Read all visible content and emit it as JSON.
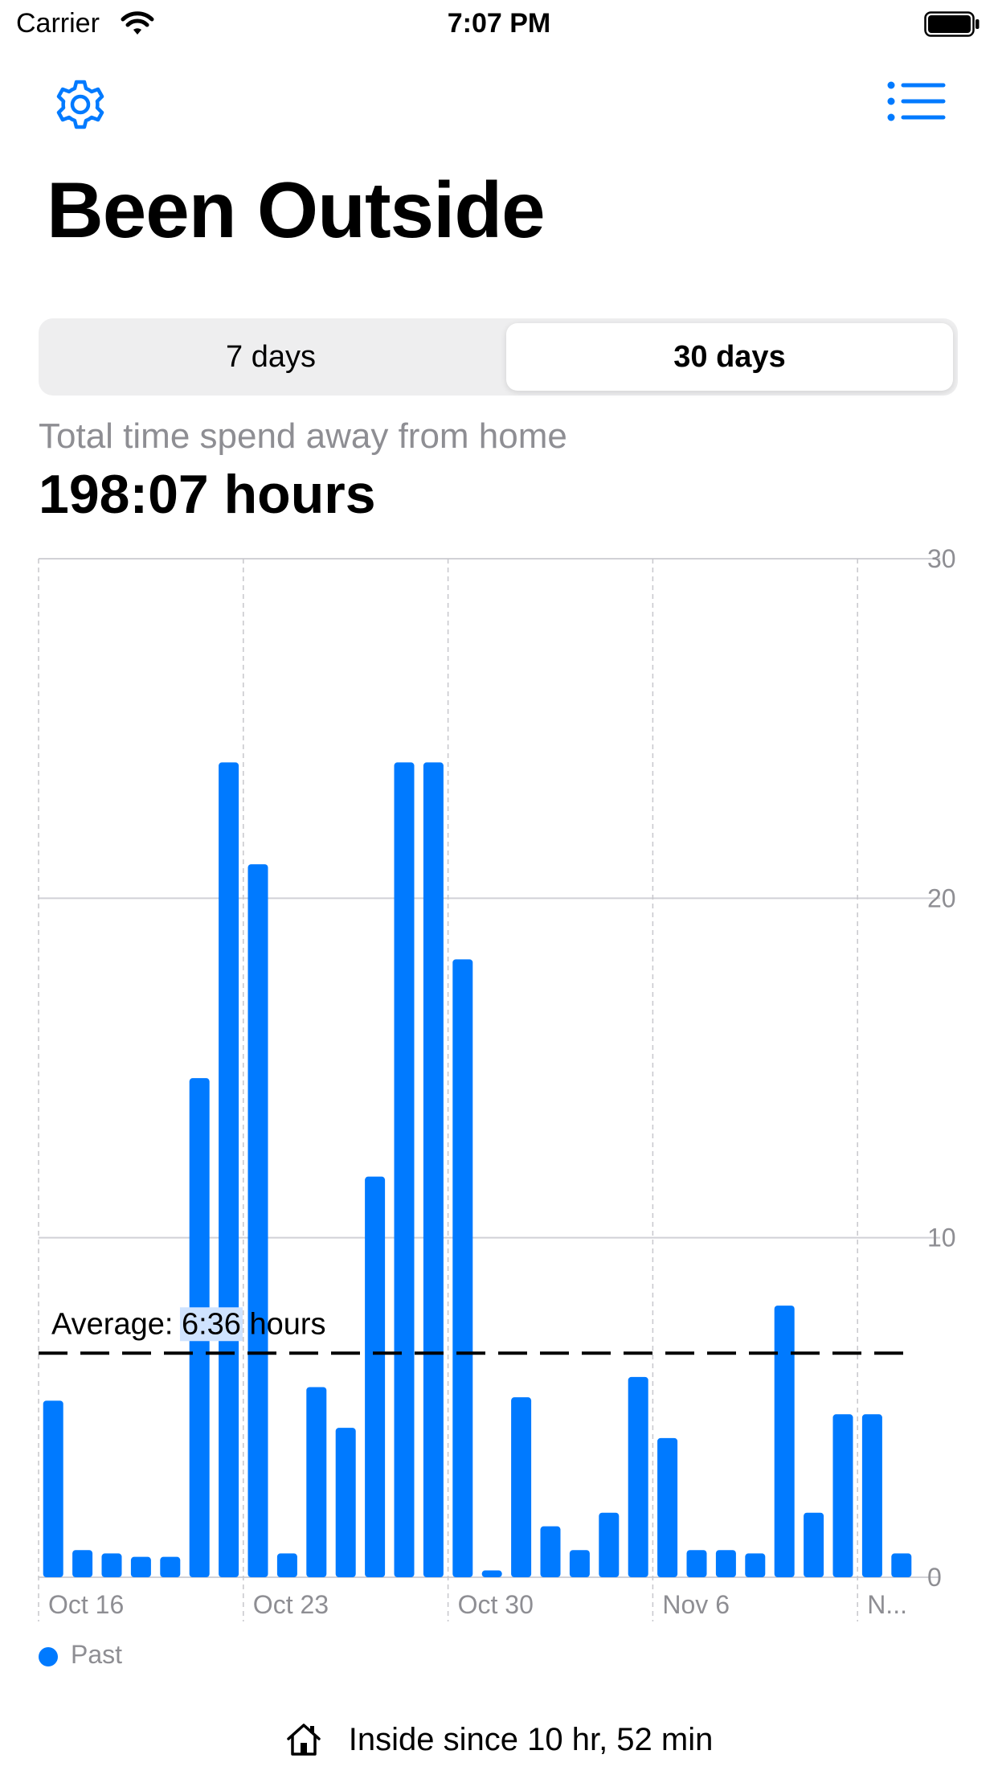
{
  "status_bar": {
    "carrier": "Carrier",
    "time": "7:07 PM",
    "wifi_icon": "wifi-icon",
    "battery_icon": "battery-icon"
  },
  "nav": {
    "settings_icon": "gear-icon",
    "list_icon": "list-icon",
    "accent_color": "#007aff"
  },
  "title": "Been Outside",
  "segmented": {
    "options": [
      "7 days",
      "30 days"
    ],
    "selected": "30 days"
  },
  "summary": {
    "label": "Total time spend away from home",
    "value": "198:07 hours"
  },
  "chart_data": {
    "type": "bar",
    "x_tick_labels": [
      "Oct 16",
      "Oct 23",
      "Oct 30",
      "Nov 6",
      "N..."
    ],
    "x_ticks_at_index": [
      0,
      7,
      14,
      21,
      28
    ],
    "y_ticks": [
      0,
      10,
      20,
      30
    ],
    "ylim": [
      0,
      30
    ],
    "y_axis_position": "right",
    "grid": true,
    "series": [
      {
        "name": "Past",
        "color": "#007aff",
        "values": [
          5.2,
          0.8,
          0.7,
          0.6,
          0.6,
          14.7,
          24.0,
          21.0,
          0.7,
          5.6,
          4.4,
          11.8,
          24.0,
          24.0,
          18.2,
          0.2,
          5.3,
          1.5,
          0.8,
          1.9,
          5.9,
          4.1,
          0.8,
          0.8,
          0.7,
          8.0,
          1.9,
          4.8,
          4.8,
          0.7
        ]
      }
    ],
    "average": {
      "value": 6.6,
      "prefix": "Average: ",
      "highlight": "6:36",
      "suffix": " hours"
    },
    "legend_position": "bottom-left"
  },
  "footer": {
    "icon": "house-icon",
    "text": "Inside since 10 hr, 52 min"
  }
}
